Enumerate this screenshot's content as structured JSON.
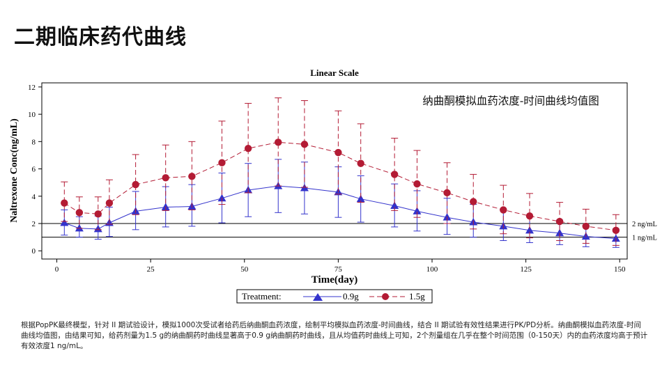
{
  "slide": {
    "title": "二期临床药代曲线",
    "caption": "根据PopPK最终模型，针对 II 期试验设计，模拟1000次受试者给药后纳曲酮血药浓度，绘制平均模拟血药浓度-时间曲线，结合 II 期试验有效性结果进行PK/PD分析。纳曲酮模拟血药浓度-时间曲线均值图，由结果可知，给药剂量为1.5 g的纳曲酮药时曲线显著高于0.9 g纳曲酮药时曲线，且从均值药时曲线上可知，2个剂量组在几乎在整个时间范围（0-150天）内的血药浓度均高于预计有效浓度1 ng/mL。"
  },
  "chart_data": {
    "type": "line",
    "title": "Linear Scale",
    "inner_title": "纳曲酮模拟血药浓度-时间曲线均值图",
    "xlabel": "Time(day)",
    "ylabel": "Naltrexone Conc(ng/mL)",
    "xlim": [
      -4,
      152
    ],
    "ylim": [
      -0.6,
      12.3
    ],
    "xticks": [
      0,
      25,
      50,
      75,
      100,
      125,
      150
    ],
    "yticks": [
      0,
      2,
      4,
      6,
      8,
      10,
      12
    ],
    "grid": false,
    "legend": {
      "title": "Treatment:",
      "placement": "bottom-center"
    },
    "x": [
      2,
      6,
      11,
      14,
      21,
      29,
      36,
      44,
      51,
      59,
      66,
      75,
      81,
      90,
      96,
      104,
      111,
      119,
      126,
      134,
      141,
      149
    ],
    "series": [
      {
        "name": "0.9g",
        "color": "#3333cc",
        "marker": "triangle",
        "line": "solid",
        "values": [
          2.05,
          1.65,
          1.6,
          2.05,
          2.9,
          3.2,
          3.25,
          3.85,
          4.45,
          4.75,
          4.6,
          4.3,
          3.8,
          3.3,
          2.9,
          2.45,
          2.1,
          1.8,
          1.5,
          1.3,
          1.05,
          0.9
        ],
        "upper": [
          3.0,
          2.5,
          2.55,
          3.2,
          4.35,
          4.7,
          4.85,
          5.7,
          6.4,
          6.7,
          6.5,
          6.15,
          5.5,
          4.9,
          4.4,
          3.85,
          3.4,
          3.0,
          2.5,
          2.25,
          1.85,
          1.6
        ],
        "lower": [
          1.15,
          1.0,
          0.85,
          1.05,
          1.55,
          1.75,
          1.8,
          2.05,
          2.5,
          2.8,
          2.7,
          2.45,
          2.1,
          1.75,
          1.45,
          1.2,
          1.0,
          0.75,
          0.6,
          0.45,
          0.3,
          0.25
        ]
      },
      {
        "name": "1.5g",
        "color": "#b31b34",
        "marker": "circle",
        "line": "dashed",
        "values": [
          3.5,
          2.8,
          2.7,
          3.5,
          4.85,
          5.35,
          5.45,
          6.45,
          7.5,
          7.95,
          7.8,
          7.2,
          6.4,
          5.6,
          4.9,
          4.25,
          3.6,
          3.0,
          2.55,
          2.15,
          1.8,
          1.5
        ],
        "upper": [
          5.05,
          3.95,
          3.95,
          5.2,
          7.05,
          7.75,
          8.0,
          9.5,
          10.8,
          11.2,
          11.0,
          10.25,
          9.3,
          8.25,
          7.35,
          6.45,
          5.6,
          4.8,
          4.2,
          3.55,
          3.05,
          2.65
        ],
        "lower": [
          2.15,
          1.65,
          1.55,
          1.95,
          2.65,
          2.95,
          3.0,
          3.4,
          4.25,
          4.75,
          4.65,
          4.15,
          3.55,
          2.95,
          2.45,
          2.0,
          1.6,
          1.25,
          0.95,
          0.75,
          0.55,
          0.4
        ]
      }
    ],
    "reference_lines": [
      {
        "y": 2,
        "label": "2 ng/mL"
      },
      {
        "y": 1,
        "label": "1 ng/mL"
      }
    ]
  }
}
